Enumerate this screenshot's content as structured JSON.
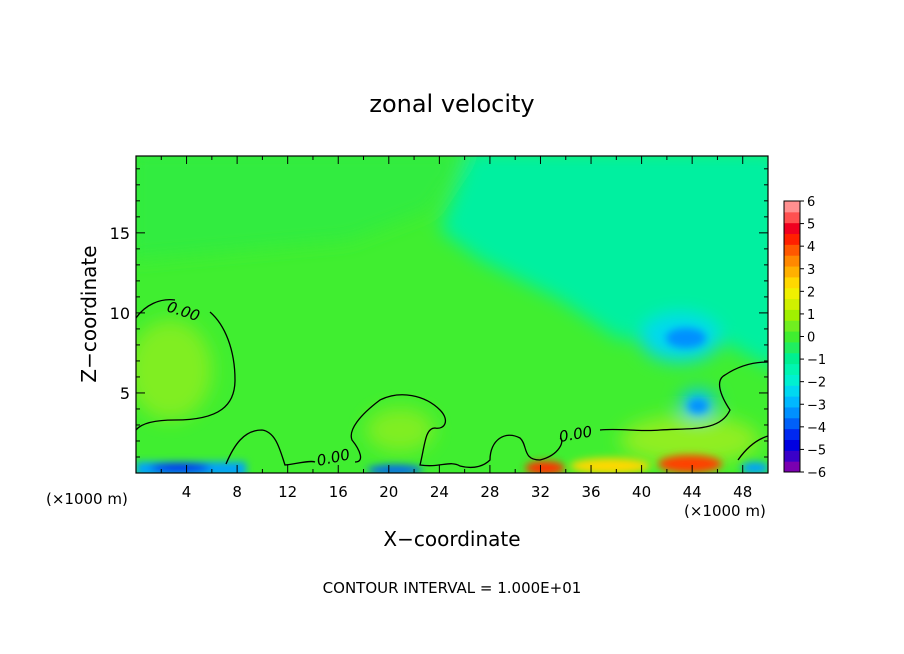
{
  "chart_data": {
    "type": "heatmap",
    "title": "zonal velocity",
    "xlabel": "X−coordinate",
    "ylabel": "Z−coordinate",
    "x_unit_left": "(×1000 m)",
    "x_unit_right": "(×1000 m)",
    "footer": "CONTOUR INTERVAL = 1.000E+01",
    "xlim": [
      0,
      50
    ],
    "ylim": [
      0,
      19.8
    ],
    "x_ticks": [
      4,
      8,
      12,
      16,
      20,
      24,
      28,
      32,
      36,
      40,
      44,
      48
    ],
    "y_ticks": [
      5,
      10,
      15
    ],
    "contour_labels": [
      "0.00",
      "0.00",
      "0.00"
    ],
    "colorbar": {
      "ticks": [
        "6",
        "5",
        "4",
        "3",
        "2",
        "1",
        "0",
        "−1",
        "−2",
        "−3",
        "−4",
        "−5",
        "−6"
      ],
      "levels": [
        -6,
        -5.5,
        -5,
        -4.5,
        -4,
        -3.5,
        -3,
        -2.5,
        -2,
        -1.5,
        -1,
        -0.5,
        0,
        0.5,
        1,
        1.5,
        2,
        2.5,
        3,
        3.5,
        4,
        4.5,
        5,
        5.5,
        6
      ],
      "colors": [
        "#7a00b0",
        "#3a00c8",
        "#0000e0",
        "#0028f0",
        "#0060f8",
        "#0090ff",
        "#00b8ff",
        "#00d8f0",
        "#00f0d0",
        "#00f5b0",
        "#00f090",
        "#20ee60",
        "#40ee30",
        "#70ee20",
        "#a0f000",
        "#d0f000",
        "#f0f000",
        "#ffd800",
        "#ffb000",
        "#ff8800",
        "#ff5800",
        "#ff2000",
        "#f00020",
        "#ff5050",
        "#ff9090"
      ]
    }
  }
}
